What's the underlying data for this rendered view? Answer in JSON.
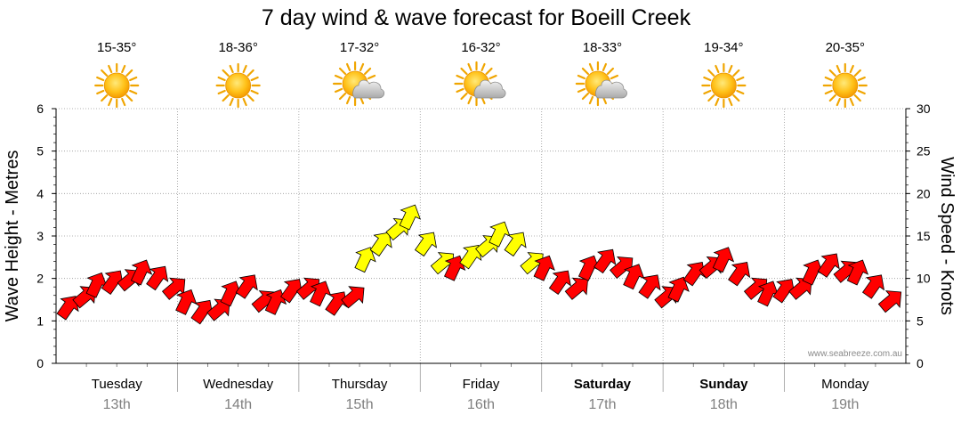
{
  "chart_data": {
    "type": "line",
    "title": "7 day wind & wave forecast for Boeill Creek",
    "y_left_label": "Wave Height - Metres",
    "y_right_label": "Wind Speed - Knots",
    "y_left_range": [
      0,
      6
    ],
    "y_right_range": [
      0,
      30
    ],
    "y_left_ticks": [
      "0",
      "1",
      "2",
      "3",
      "4",
      "5",
      "6"
    ],
    "y_right_ticks": [
      "0",
      "5",
      "10",
      "15",
      "20",
      "25",
      "30"
    ],
    "watermark": "www.seabreeze.com.au",
    "days": [
      {
        "name": "Tuesday",
        "date": "13th",
        "weekend": false,
        "temp": "15-35°",
        "icon": "sun-icon"
      },
      {
        "name": "Wednesday",
        "date": "14th",
        "weekend": false,
        "temp": "18-36°",
        "icon": "sun-icon"
      },
      {
        "name": "Thursday",
        "date": "15th",
        "weekend": false,
        "temp": "17-32°",
        "icon": "sun-cloud-icon"
      },
      {
        "name": "Friday",
        "date": "16th",
        "weekend": false,
        "temp": "16-32°",
        "icon": "sun-cloud-icon"
      },
      {
        "name": "Saturday",
        "date": "17th",
        "weekend": true,
        "temp": "18-33°",
        "icon": "sun-cloud-icon"
      },
      {
        "name": "Sunday",
        "date": "18th",
        "weekend": true,
        "temp": "19-34°",
        "icon": "sun-icon"
      },
      {
        "name": "Monday",
        "date": "19th",
        "weekend": false,
        "temp": "20-35°",
        "icon": "sun-icon"
      }
    ],
    "series": [
      {
        "name": "Wind Speed (knots)",
        "hours": [
          0,
          3,
          6,
          9,
          12,
          15,
          18,
          21,
          24,
          27,
          30,
          33,
          36,
          39,
          42,
          45,
          48,
          51,
          54,
          57,
          60,
          63,
          66,
          69,
          72,
          75,
          78,
          81,
          84,
          87,
          90,
          93,
          96,
          99,
          102,
          105,
          108,
          111,
          114,
          117,
          120,
          123,
          126,
          129,
          132,
          135,
          138,
          141,
          144,
          147,
          150,
          153,
          156,
          159,
          162,
          165
        ],
        "values": [
          5.5,
          7,
          8,
          8.5,
          9,
          9.5,
          9,
          8,
          6,
          5,
          5.5,
          7,
          8,
          6.5,
          6,
          7.5,
          8,
          7,
          6,
          7,
          11,
          13,
          15,
          16,
          13,
          11,
          10,
          11.5,
          13,
          14,
          13,
          11,
          10,
          8.5,
          8,
          10,
          11,
          10.5,
          9,
          8,
          7,
          7.5,
          9.5,
          10.5,
          11,
          9.5,
          8,
          7,
          7.5,
          8,
          9.5,
          10.5,
          10,
          9.5,
          8,
          6.5
        ],
        "color_strong": "#ff0000",
        "color_light": "#ffff00",
        "color_mixed": "#f8ff20"
      }
    ]
  }
}
